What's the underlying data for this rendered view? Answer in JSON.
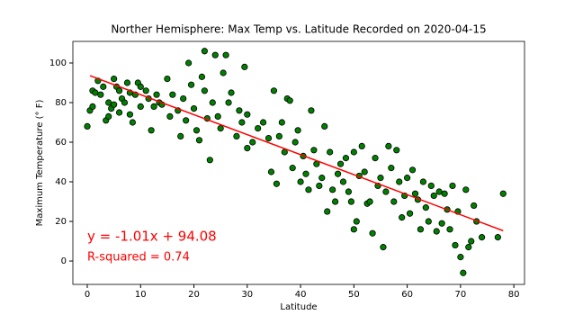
{
  "chart_data": {
    "type": "scatter",
    "title": "Norther Hemisphere: Max Temp vs. Latitude Recorded on 2020-04-15",
    "xlabel": "Latitude",
    "ylabel": "Maximum Temperature (° F)",
    "color": "#008000",
    "x": [
      0,
      0.5,
      1,
      1,
      1.5,
      2,
      2.5,
      3,
      3.5,
      4,
      4,
      4.5,
      5,
      5,
      5.5,
      6,
      6,
      6.5,
      7,
      7.5,
      8,
      8,
      8.5,
      9,
      9.5,
      10,
      10,
      11,
      11.5,
      12,
      12.5,
      13,
      13.5,
      14,
      15,
      15.5,
      16,
      17,
      17.5,
      18,
      18.5,
      19,
      19.5,
      20,
      20.5,
      21,
      21.5,
      22,
      22,
      22.5,
      23,
      23.5,
      24,
      24.5,
      25,
      25.5,
      26,
      26.5,
      27,
      28,
      28.5,
      29,
      29.5,
      30,
      30,
      31,
      32,
      33,
      34,
      34.5,
      35,
      35.5,
      36,
      36.5,
      37,
      37.5,
      38,
      38.5,
      39,
      39.5,
      40,
      40.5,
      41,
      41.5,
      42,
      42.5,
      43,
      43.5,
      44,
      44.5,
      45,
      45.5,
      46,
      46.5,
      47,
      47.5,
      48,
      48.5,
      49,
      49.5,
      50,
      50,
      50.5,
      51,
      51.5,
      52,
      52.5,
      53,
      53.5,
      54,
      54.5,
      55,
      55.5,
      56,
      56.5,
      57,
      57.5,
      58,
      58.5,
      59,
      59.5,
      60,
      60.5,
      61,
      61.5,
      62,
      62.5,
      63,
      63.5,
      64,
      64.5,
      65,
      65.5,
      66,
      66.5,
      67,
      67.5,
      68,
      68.5,
      69,
      69.5,
      70,
      70.5,
      71,
      71.5,
      72,
      72.5,
      73,
      74,
      77,
      78
    ],
    "values": [
      68,
      76,
      78,
      86,
      85,
      91,
      84,
      88,
      71,
      73,
      80,
      77,
      79,
      92,
      88,
      86,
      75,
      82,
      80,
      90,
      85,
      74,
      70,
      84,
      90,
      78,
      88,
      86,
      82,
      66,
      78,
      84,
      80,
      79,
      92,
      73,
      84,
      76,
      63,
      82,
      71,
      100,
      89,
      77,
      66,
      61,
      93,
      106,
      86,
      72,
      51,
      80,
      104,
      73,
      67,
      95,
      104,
      80,
      85,
      63,
      76,
      70,
      98,
      57,
      74,
      60,
      67,
      70,
      62,
      45,
      86,
      39,
      63,
      70,
      55,
      82,
      81,
      47,
      60,
      66,
      40,
      53,
      44,
      36,
      76,
      56,
      49,
      38,
      42,
      68,
      25,
      55,
      36,
      30,
      44,
      49,
      40,
      52,
      35,
      30,
      16,
      55,
      20,
      43,
      58,
      45,
      29,
      30,
      14,
      52,
      38,
      42,
      7,
      35,
      58,
      47,
      30,
      56,
      40,
      22,
      33,
      42,
      24,
      46,
      34,
      31,
      16,
      40,
      27,
      20,
      38,
      33,
      15,
      35,
      19,
      34,
      26,
      16,
      38,
      8,
      25,
      2,
      -6,
      36,
      7,
      10,
      28,
      20,
      12,
      12,
      34
    ],
    "fit_line": {
      "x": [
        0.5,
        78
      ],
      "values": [
        93.6,
        15.3
      ],
      "color": "#ff0000"
    },
    "annotations": [
      "y = -1.01x + 94.08",
      "R-squared = 0.74"
    ],
    "xlim": [
      -2.7,
      82
    ],
    "ylim": [
      -11.8,
      110.9
    ],
    "xticks": [
      0,
      10,
      20,
      30,
      40,
      50,
      60,
      70,
      80
    ],
    "yticks": [
      0,
      20,
      40,
      60,
      80,
      100
    ],
    "grid": false
  }
}
